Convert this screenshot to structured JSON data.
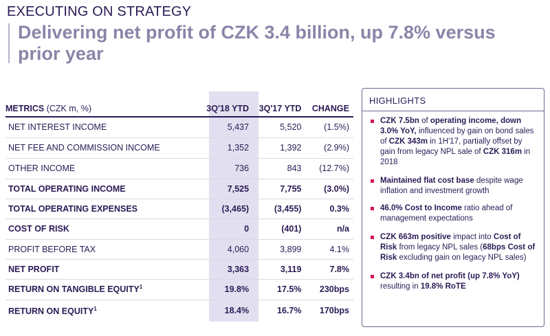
{
  "header": {
    "kicker": "EXECUTING ON STRATEGY",
    "title": "Delivering net profit of CZK 3.4 billion, up 7.8% versus prior year"
  },
  "table": {
    "metrics_label": "METRICS",
    "metrics_unit": " (CZK m, %)",
    "col_current": "3Q'18 YTD",
    "col_prior": "3Q'17 YTD",
    "col_change": "CHANGE",
    "rows": [
      {
        "label": "NET INTEREST INCOME",
        "current": "5,437",
        "prior": "5,520",
        "change": "(1.5%)"
      },
      {
        "label": "NET FEE AND COMMISSION INCOME",
        "current": "1,352",
        "prior": "1,392",
        "change": "(2.9%)"
      },
      {
        "label": "OTHER INCOME",
        "current": "736",
        "prior": "843",
        "change": "(12.7%)"
      },
      {
        "label": "TOTAL OPERATING INCOME",
        "current": "7,525",
        "prior": "7,755",
        "change": "(3.0%)"
      },
      {
        "label": "TOTAL OPERATING EXPENSES",
        "current": "(3,465)",
        "prior": "(3,455)",
        "change": "0.3%"
      },
      {
        "label": "COST OF RISK",
        "current": "0",
        "prior": "(401)",
        "change": "n/a"
      },
      {
        "label": "PROFIT BEFORE TAX",
        "current": "4,060",
        "prior": "3,899",
        "change": "4.1%"
      },
      {
        "label": "NET PROFIT",
        "current": "3,363",
        "prior": "3,119",
        "change": "7.8%"
      },
      {
        "label": "RETURN ON TANGIBLE EQUITY",
        "sup": "1",
        "current": "19.8%",
        "prior": "17.5%",
        "change": "230bps"
      },
      {
        "label": "RETURN ON EQUITY",
        "sup": "1",
        "current": "18.4%",
        "prior": "16.7%",
        "change": "170bps"
      }
    ]
  },
  "highlights": {
    "title": "HIGHLIGHTS",
    "items": [
      {
        "p": [
          {
            "t": "CZK 7.5bn",
            "b": true
          },
          {
            "t": " of ",
            "b": false
          },
          {
            "t": "operating income, down 3.0% YoY,",
            "b": true
          },
          {
            "t": " influenced by gain on bond sales of ",
            "b": false
          },
          {
            "t": "CZK 343m",
            "b": true
          },
          {
            "t": " in 1H'17, partially offset by gain from legacy NPL sale of ",
            "b": false
          },
          {
            "t": "CZK 316m",
            "b": true
          },
          {
            "t": " in 2018",
            "b": false
          }
        ]
      },
      {
        "p": [
          {
            "t": "Maintained flat cost base",
            "b": true
          },
          {
            "t": " despite wage inflation and investment growth",
            "b": false
          }
        ]
      },
      {
        "p": [
          {
            "t": "46.0% Cost to Income",
            "b": true
          },
          {
            "t": " ratio ahead of management expectations",
            "b": false
          }
        ]
      },
      {
        "p": [
          {
            "t": "CZK 663m positive",
            "b": true
          },
          {
            "t": " impact into ",
            "b": false
          },
          {
            "t": "Cost of Risk",
            "b": true
          },
          {
            "t": " from legacy NPL sales (",
            "b": false
          },
          {
            "t": "68bps Cost of Risk",
            "b": true
          },
          {
            "t": " excluding gain on legacy NPL sales)",
            "b": false
          }
        ]
      },
      {
        "p": [
          {
            "t": "CZK 3.4bn of net profit (up 7.8% YoY)",
            "b": true
          },
          {
            "t": " resulting in ",
            "b": false
          },
          {
            "t": "19.8% RoTE",
            "b": true
          }
        ]
      }
    ]
  }
}
